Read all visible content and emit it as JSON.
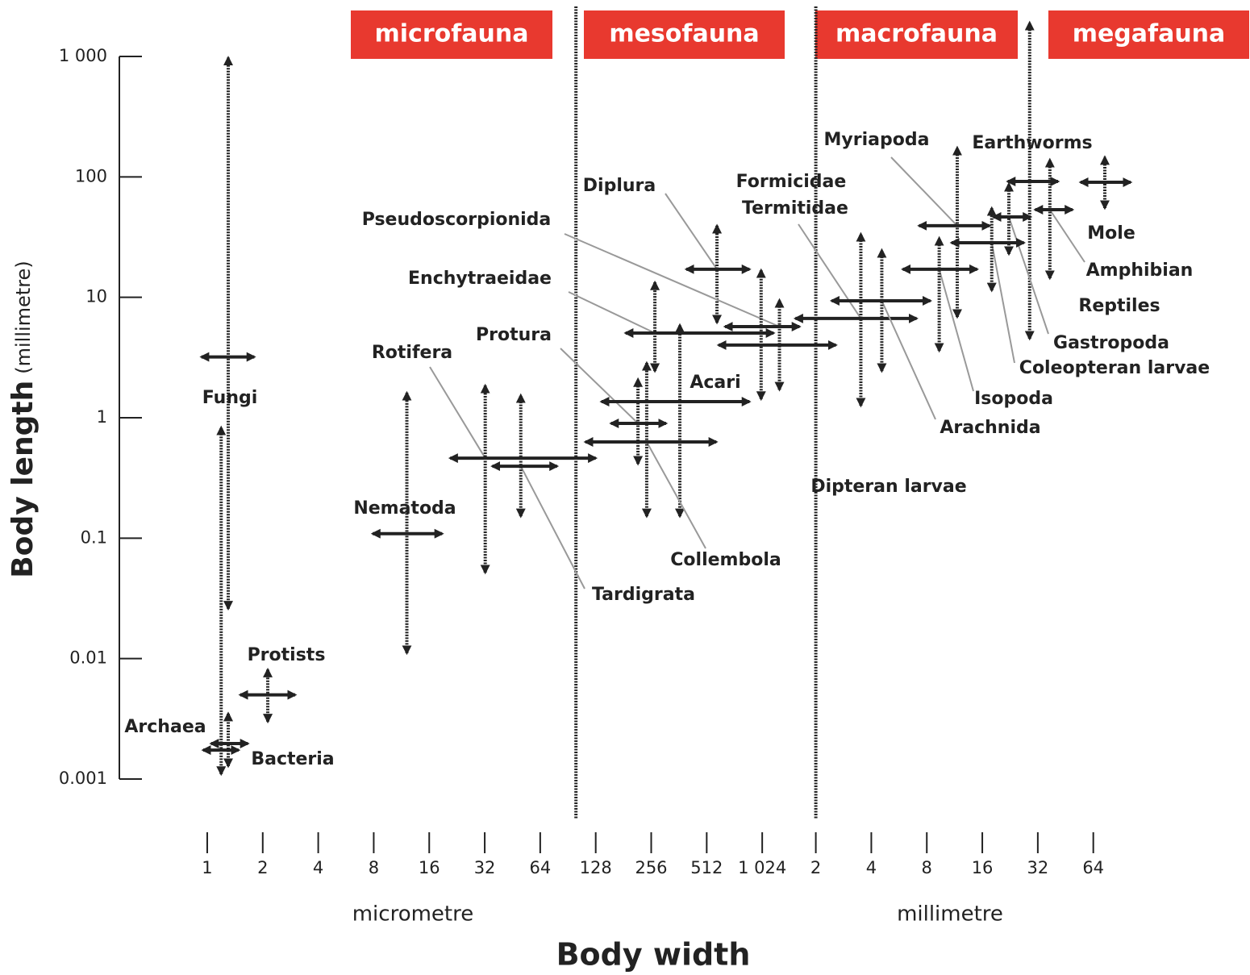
{
  "chart_data": {
    "type": "range",
    "x_label": "Body width",
    "x_units": [
      "micrometre",
      "millimetre"
    ],
    "y_label": "Body length",
    "y_unit": "(millimetre)",
    "bands": [
      "microfauna",
      "mesofauna",
      "macrofauna",
      "megafauna"
    ],
    "dividers": [
      0.1,
      2
    ],
    "xscale": "log",
    "yscale": "log",
    "xlim": [
      0.0004,
      100
    ],
    "ylim": [
      0.001,
      1000
    ],
    "xticks": [
      {
        "value": 0.001,
        "label": "1"
      },
      {
        "value": 0.002,
        "label": "2"
      },
      {
        "value": 0.004,
        "label": "4"
      },
      {
        "value": 0.008,
        "label": "8"
      },
      {
        "value": 0.016,
        "label": "16"
      },
      {
        "value": 0.032,
        "label": "32"
      },
      {
        "value": 0.064,
        "label": "64"
      },
      {
        "value": 0.128,
        "label": "128"
      },
      {
        "value": 0.256,
        "label": "256"
      },
      {
        "value": 0.512,
        "label": "512"
      },
      {
        "value": 1.024,
        "label": "1 024"
      },
      2,
      4,
      8,
      16,
      32,
      64
    ],
    "yticks": [
      {
        "value": 1000,
        "label": "1 000"
      },
      100,
      10,
      1,
      0.1,
      0.01,
      0.001
    ],
    "color": "#222222",
    "band_color": "#e8392f",
    "series": [
      {
        "name": "Fungi",
        "width": [
          0.00093,
          0.0018
        ],
        "length": [
          0.026,
          977
        ],
        "center": [
          0.0013,
          3.2
        ]
      },
      {
        "name": "Archaea",
        "width": [
          0.00095,
          0.00148
        ],
        "length": [
          0.00128,
          0.0035
        ],
        "center": [
          0.0013,
          0.00174
        ]
      },
      {
        "name": "Bacteria",
        "width": [
          0.00105,
          0.00166
        ],
        "length": [
          0.0011,
          0.83
        ],
        "center": [
          0.00119,
          0.00197
        ]
      },
      {
        "name": "Protists",
        "width": [
          0.00151,
          0.003
        ],
        "length": [
          0.003,
          0.0081
        ],
        "center": [
          0.00213,
          0.005
        ]
      },
      {
        "name": "Nematoda",
        "width": [
          0.0079,
          0.0188
        ],
        "length": [
          0.0111,
          1.61
        ],
        "center": [
          0.0121,
          0.109
        ]
      },
      {
        "name": "Rotifera",
        "width": [
          0.0208,
          0.128
        ],
        "length": [
          0.0518,
          1.85
        ],
        "center": [
          0.0322,
          0.462
        ]
      },
      {
        "name": "Tardigrata",
        "width": [
          0.0352,
          0.079
        ],
        "length": [
          0.152,
          1.54
        ],
        "center": [
          0.0502,
          0.396
        ]
      },
      {
        "name": "Protura",
        "width": [
          0.155,
          0.308
        ],
        "length": [
          0.415,
          2.09
        ],
        "center": [
          0.217,
          0.898
        ]
      },
      {
        "name": "Acari",
        "width": [
          0.1376,
          0.873
        ],
        "length": [
          0.152,
          5.89
        ],
        "center": [
          0.366,
          1.36
        ]
      },
      {
        "name": "Collembola",
        "width": [
          0.1125,
          0.577
        ],
        "length": [
          0.152,
          2.85
        ],
        "center": [
          0.242,
          0.63
        ]
      },
      {
        "name": "Enchytraeidae",
        "width": [
          0.186,
          1.18
        ],
        "length": [
          2.44,
          13.3
        ],
        "center": [
          0.268,
          5.05
        ]
      },
      {
        "name": "Diplura",
        "width": [
          0.397,
          0.873
        ],
        "length": [
          6.17,
          39.3
        ],
        "center": [
          0.582,
          17.1
        ]
      },
      {
        "name": "Pseudoscorpionida",
        "width": [
          0.644,
          1.63
        ],
        "length": [
          1.71,
          9.5
        ],
        "center": [
          1.27,
          5.71
        ]
      },
      {
        "name": "Formicidae",
        "width": [
          0.594,
          2.57
        ],
        "length": [
          1.43,
          16.8
        ],
        "center": [
          1.01,
          4.01
        ]
      },
      {
        "name": "Termitidae",
        "width": [
          1.55,
          7.04
        ],
        "length": [
          1.26,
          33.6
        ],
        "center": [
          3.51,
          6.67
        ]
      },
      {
        "name": "Dipteran larvae"
      },
      {
        "name": "Arachnida",
        "width": [
          2.44,
          8.36
        ],
        "length": [
          2.44,
          24.7
        ],
        "center": [
          4.56,
          9.36
        ]
      },
      {
        "name": "Isopoda",
        "width": [
          5.93,
          15.0
        ],
        "length": [
          3.6,
          31.1
        ],
        "center": [
          9.34,
          17.1
        ]
      },
      {
        "name": "Myriapoda",
        "width": [
          7.26,
          17.5
        ],
        "length": [
          6.87,
          175
        ],
        "center": [
          11.7,
          39.3
        ]
      },
      {
        "name": "Earthworms",
        "width": [
          22.0,
          41.2
        ],
        "length": [
          4.53,
          1910
        ],
        "center": [
          28.9,
          91.6
        ]
      },
      {
        "name": "Gastropoda",
        "width": [
          18.4,
          29.2
        ],
        "length": [
          22.9,
          87.5
        ],
        "center": [
          22.3,
          46.5
        ]
      },
      {
        "name": "Coleopteran larvae",
        "width": [
          10.9,
          26.9
        ],
        "length": [
          11.4,
          55.1
        ],
        "center": [
          18.0,
          28.4
        ]
      },
      {
        "name": "Amphibian",
        "width": [
          31.0,
          49.3
        ],
        "length": [
          14.4,
          139
        ],
        "center": [
          37.2,
          53.4
        ]
      },
      {
        "name": "Reptiles"
      },
      {
        "name": "Mole",
        "width": [
          54.6,
          102
        ],
        "length": [
          55.1,
          146
        ],
        "center": [
          73.9,
          90.2
        ]
      }
    ]
  }
}
